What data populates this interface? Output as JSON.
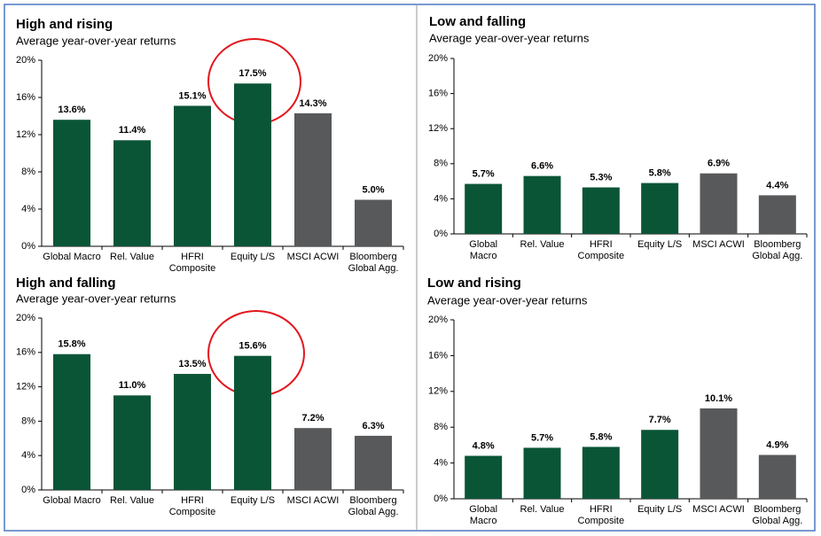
{
  "chart_data": [
    {
      "type": "bar",
      "title": "High and rising",
      "subtitle": "Average year-over-year returns",
      "categories": [
        "Global Macro",
        "Rel. Value",
        "HFRI Composite",
        "Equity L/S",
        "MSCI ACWI",
        "Bloomberg Global Agg."
      ],
      "values": [
        13.6,
        11.4,
        15.1,
        17.5,
        14.3,
        5.0
      ],
      "value_labels": [
        "13.6%",
        "11.4%",
        "15.1%",
        "17.5%",
        "14.3%",
        "5.0%"
      ],
      "colors": [
        "#0b5537",
        "#0b5537",
        "#0b5537",
        "#0b5537",
        "#58595b",
        "#58595b"
      ],
      "ylim": [
        0,
        20
      ],
      "yticks": [
        {
          "value": 0,
          "label": "0%"
        },
        {
          "value": 4,
          "label": "4%"
        },
        {
          "value": 8,
          "label": "8%"
        },
        {
          "value": 12,
          "label": "12%"
        },
        {
          "value": 16,
          "label": "16%"
        },
        {
          "value": 20,
          "label": "20%"
        }
      ]
    },
    {
      "type": "bar",
      "title": "Low and falling",
      "subtitle": "Average year-over-year returns",
      "categories": [
        "Global Macro",
        "Rel. Value",
        "HFRI Composite",
        "Equity L/S",
        "MSCI ACWI",
        "Bloomberg Global Agg."
      ],
      "values": [
        5.7,
        6.6,
        5.3,
        5.8,
        6.9,
        4.4
      ],
      "value_labels": [
        "5.7%",
        "6.6%",
        "5.3%",
        "5.8%",
        "6.9%",
        "4.4%"
      ],
      "colors": [
        "#0b5537",
        "#0b5537",
        "#0b5537",
        "#0b5537",
        "#58595b",
        "#58595b"
      ],
      "ylim": [
        0,
        20
      ],
      "yticks": [
        {
          "value": 0,
          "label": "0%"
        },
        {
          "value": 4,
          "label": "4%"
        },
        {
          "value": 8,
          "label": "8%"
        },
        {
          "value": 12,
          "label": "12%"
        },
        {
          "value": 16,
          "label": "16%"
        },
        {
          "value": 20,
          "label": "20%"
        }
      ]
    },
    {
      "type": "bar",
      "title": "High and falling",
      "subtitle": "Average year-over-year returns",
      "categories": [
        "Global Macro",
        "Rel. Value",
        "HFRI Composite",
        "Equity L/S",
        "MSCI ACWI",
        "Bloomberg Global Agg."
      ],
      "values": [
        15.8,
        11.0,
        13.5,
        15.6,
        7.2,
        6.3
      ],
      "value_labels": [
        "15.8%",
        "11.0%",
        "13.5%",
        "15.6%",
        "7.2%",
        "6.3%"
      ],
      "colors": [
        "#0b5537",
        "#0b5537",
        "#0b5537",
        "#0b5537",
        "#58595b",
        "#58595b"
      ],
      "ylim": [
        0,
        20
      ],
      "yticks": [
        {
          "value": 0,
          "label": "0%"
        },
        {
          "value": 4,
          "label": "4%"
        },
        {
          "value": 8,
          "label": "8%"
        },
        {
          "value": 12,
          "label": "12%"
        },
        {
          "value": 16,
          "label": "16%"
        },
        {
          "value": 20,
          "label": "20%"
        }
      ]
    },
    {
      "type": "bar",
      "title": "Low and rising",
      "subtitle": "Average year-over-year returns",
      "categories": [
        "Global Macro",
        "Rel. Value",
        "HFRI Composite",
        "Equity L/S",
        "MSCI ACWI",
        "Bloomberg Global Agg."
      ],
      "values": [
        4.8,
        5.7,
        5.8,
        7.7,
        10.1,
        4.9
      ],
      "value_labels": [
        "4.8%",
        "5.7%",
        "5.8%",
        "7.7%",
        "10.1%",
        "4.9%"
      ],
      "colors": [
        "#0b5537",
        "#0b5537",
        "#0b5537",
        "#0b5537",
        "#58595b",
        "#58595b"
      ],
      "ylim": [
        0,
        20
      ],
      "yticks": [
        {
          "value": 0,
          "label": "0%"
        },
        {
          "value": 4,
          "label": "4%"
        },
        {
          "value": 8,
          "label": "8%"
        },
        {
          "value": 12,
          "label": "12%"
        },
        {
          "value": 16,
          "label": "16%"
        },
        {
          "value": 20,
          "label": "20%"
        }
      ]
    }
  ]
}
